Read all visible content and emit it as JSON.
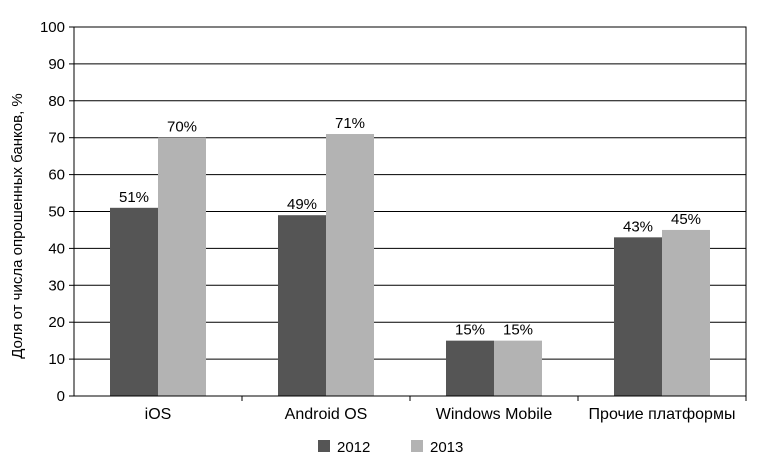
{
  "chart_data": {
    "type": "bar",
    "title": "",
    "xlabel": "",
    "ylabel": "Доля от числа опрошенных банков, %",
    "ylim": [
      0,
      100
    ],
    "yticks": [
      0,
      10,
      20,
      30,
      40,
      50,
      60,
      70,
      80,
      90,
      100
    ],
    "grid": true,
    "legend_position": "bottom",
    "categories": [
      "iOS",
      "Android OS",
      "Windows Mobile",
      "Прочие платформы"
    ],
    "series": [
      {
        "name": "2012",
        "color": "#555555",
        "values": [
          51,
          49,
          15,
          43
        ],
        "labels": [
          "51%",
          "49%",
          "15%",
          "43%"
        ]
      },
      {
        "name": "2013",
        "color": "#b3b3b3",
        "values": [
          70,
          71,
          15,
          45
        ],
        "labels": [
          "70%",
          "71%",
          "15%",
          "45%"
        ]
      }
    ]
  }
}
